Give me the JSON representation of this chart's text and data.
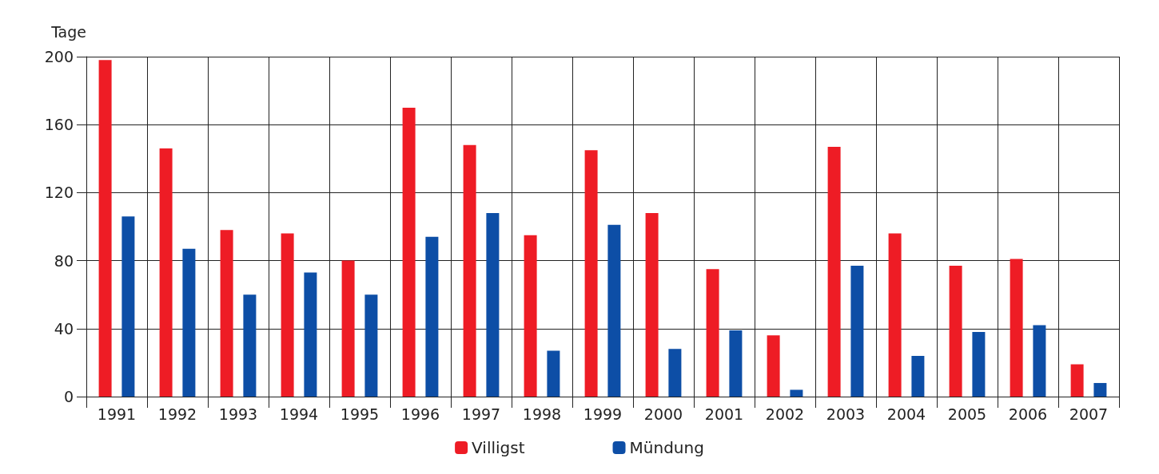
{
  "chart_data": {
    "type": "bar",
    "ylabel": "Tage",
    "categories": [
      "1991",
      "1992",
      "1993",
      "1994",
      "1995",
      "1996",
      "1997",
      "1998",
      "1999",
      "2000",
      "2001",
      "2002",
      "2003",
      "2004",
      "2005",
      "2006",
      "2007"
    ],
    "series": [
      {
        "name": "Villigst",
        "color": "#ee1c25",
        "values": [
          198,
          146,
          98,
          96,
          80,
          170,
          148,
          95,
          145,
          108,
          75,
          36,
          147,
          96,
          77,
          81,
          19
        ]
      },
      {
        "name": "Mündung",
        "color": "#0d4ea6",
        "values": [
          106,
          87,
          60,
          73,
          60,
          94,
          108,
          27,
          101,
          28,
          39,
          4,
          77,
          24,
          38,
          42,
          8
        ]
      }
    ],
    "ylim": [
      0,
      200
    ],
    "yticks": [
      0,
      40,
      80,
      120,
      160,
      200
    ],
    "grid": true,
    "legend": "bottom"
  }
}
